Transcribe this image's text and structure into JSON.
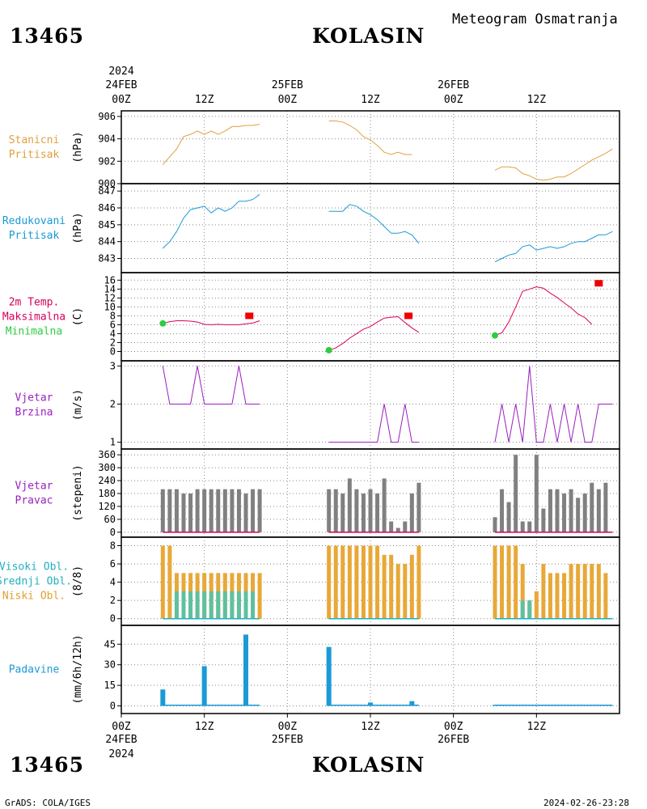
{
  "header": {
    "station_id": "13465",
    "station_name": "KOLASIN",
    "product_title": "Meteogram Osmatranja"
  },
  "footer": {
    "station_id": "13465",
    "station_name": "KOLASIN",
    "credit": "GrADS: COLA/IGES",
    "timestamp": "2024-02-26-23:28"
  },
  "chart_data": {
    "type": "line",
    "x_unit": "hours",
    "x_range": [
      0,
      72
    ],
    "x_ticks": [
      0,
      12,
      24,
      36,
      48,
      60
    ],
    "x_tick_labels": [
      "00Z",
      "12Z",
      "00Z",
      "12Z",
      "00Z",
      "12Z"
    ],
    "top_date_labels": [
      {
        "x": 0,
        "text": "24FEB",
        "year": "2024"
      },
      {
        "x": 24,
        "text": "25FEB"
      },
      {
        "x": 48,
        "text": "26FEB"
      }
    ],
    "bottom_date_labels": [
      {
        "x": 0,
        "text": "24FEB",
        "year": "2024"
      },
      {
        "x": 24,
        "text": "25FEB"
      },
      {
        "x": 48,
        "text": "26FEB"
      }
    ],
    "grid": true,
    "panels": [
      {
        "id": "pressure",
        "labels": [
          {
            "text": "Stanicni",
            "color": "#e0a040"
          },
          {
            "text": "Pritisak",
            "color": "#e0a040"
          }
        ],
        "ylabel": "(hPa)",
        "ylim": [
          900,
          906.5
        ],
        "yticks": [
          900,
          902,
          904,
          906
        ],
        "series": [
          {
            "kind": "line",
            "color": "#e0a040",
            "x": [
              6,
              7,
              8,
              9,
              10,
              11,
              12,
              13,
              14,
              15,
              16,
              17,
              18,
              19,
              20
            ],
            "y": [
              901.7,
              902.4,
              903.1,
              904.2,
              904.4,
              904.7,
              904.4,
              904.7,
              904.4,
              904.7,
              905.1,
              905.1,
              905.2,
              905.2,
              905.3
            ]
          },
          {
            "kind": "line",
            "color": "#e0a040",
            "x": [
              30,
              31,
              32,
              33,
              34,
              35,
              36,
              37,
              38,
              39,
              40,
              41,
              42,
              43,
              44
            ],
            "y": [
              905.6,
              905.6,
              905.5,
              905.2,
              904.8,
              904.2,
              903.9,
              903.4,
              902.8,
              902.6,
              902.8,
              902.6,
              902.6,
              null,
              null
            ]
          },
          {
            "kind": "line",
            "color": "#e0a040",
            "x": [
              54,
              55,
              56,
              57,
              58,
              59,
              60,
              61,
              62,
              63,
              64,
              65,
              66,
              67,
              68,
              69,
              70,
              71
            ],
            "y": [
              901.2,
              901.5,
              901.5,
              901.4,
              900.9,
              900.7,
              900.4,
              900.3,
              900.4,
              900.6,
              900.6,
              900.9,
              901.3,
              901.7,
              902.1,
              902.4,
              902.7,
              903.1
            ]
          }
        ]
      },
      {
        "id": "reduced_pressure",
        "labels": [
          {
            "text": "Redukovani",
            "color": "#1a9ad6"
          },
          {
            "text": "Pritisak",
            "color": "#1a9ad6"
          }
        ],
        "ylabel": "(hPa)",
        "ylim": [
          842.4,
          847.2
        ],
        "yticks": [
          843,
          844,
          845,
          846,
          847
        ],
        "series": [
          {
            "kind": "line",
            "color": "#1a9ad6",
            "x": [
              6,
              7,
              8,
              9,
              10,
              11,
              12,
              13,
              14,
              15,
              16,
              17,
              18,
              19,
              20
            ],
            "y": [
              843.6,
              844.0,
              844.6,
              845.4,
              845.9,
              846.0,
              846.1,
              845.7,
              846.0,
              845.8,
              846.0,
              846.4,
              846.4,
              846.5,
              846.8
            ]
          },
          {
            "kind": "line",
            "color": "#1a9ad6",
            "x": [
              30,
              31,
              32,
              33,
              34,
              35,
              36,
              37,
              38,
              39,
              40,
              41,
              42,
              43
            ],
            "y": [
              845.8,
              845.8,
              845.8,
              846.2,
              846.1,
              845.8,
              845.6,
              845.3,
              844.9,
              844.5,
              844.5,
              844.6,
              844.4,
              843.9
            ]
          },
          {
            "kind": "line",
            "color": "#1a9ad6",
            "x": [
              54,
              55,
              56,
              57,
              58,
              59,
              60,
              61,
              62,
              63,
              64,
              65,
              66,
              67,
              68,
              69,
              70,
              71
            ],
            "y": [
              842.8,
              843.0,
              843.2,
              843.3,
              843.7,
              843.8,
              843.5,
              843.6,
              843.7,
              843.6,
              843.7,
              843.9,
              844.0,
              844.0,
              844.2,
              844.4,
              844.4,
              844.6
            ]
          }
        ]
      },
      {
        "id": "temperature",
        "labels": [
          {
            "text": "2m Temp.",
            "color": "#d6005a"
          },
          {
            "text": "Maksimalna",
            "color": "#d6005a"
          },
          {
            "text": "Minimalna",
            "color": "#2ecc40"
          }
        ],
        "ylabel": "(C)",
        "ylim": [
          -1,
          16.6
        ],
        "yticks": [
          0,
          2,
          4,
          6,
          8,
          10,
          12,
          14,
          16
        ],
        "series": [
          {
            "kind": "line",
            "color": "#d6005a",
            "x": [
              6,
              7,
              8,
              9,
              10,
              11,
              12,
              13,
              14,
              15,
              16,
              17,
              18,
              19,
              20
            ],
            "y": [
              6.3,
              6.7,
              6.9,
              6.9,
              6.8,
              6.6,
              6.1,
              6.0,
              6.1,
              6.0,
              6.0,
              6.0,
              6.2,
              6.4,
              6.9
            ]
          },
          {
            "kind": "line",
            "color": "#d6005a",
            "x": [
              30,
              31,
              32,
              33,
              34,
              35,
              36,
              37,
              38,
              39,
              40,
              41,
              42,
              43
            ],
            "y": [
              0.3,
              0.8,
              1.8,
              3.0,
              4.0,
              5.0,
              5.6,
              6.6,
              7.5,
              7.7,
              7.8,
              6.5,
              5.3,
              4.3
            ]
          },
          {
            "kind": "line",
            "color": "#d6005a",
            "x": [
              54,
              55,
              56,
              57,
              58,
              59,
              60,
              61,
              62,
              63,
              64,
              65,
              66,
              67,
              68,
              69,
              70,
              71
            ],
            "y": [
              3.6,
              4.2,
              6.6,
              10.0,
              13.5,
              14.0,
              14.5,
              14.2,
              13.1,
              12.1,
              10.9,
              9.8,
              8.4,
              7.6,
              6.1,
              null,
              null,
              null
            ]
          },
          {
            "kind": "marker",
            "shape": "rect",
            "color": "#ee0000",
            "x": [
              18.5,
              41.5,
              69
            ],
            "y": [
              8,
              8,
              15.3
            ]
          },
          {
            "kind": "marker",
            "shape": "circle",
            "color": "#2ecc40",
            "x": [
              6,
              30,
              54
            ],
            "y": [
              6.3,
              0.3,
              3.6
            ]
          }
        ]
      },
      {
        "id": "wind_speed",
        "labels": [
          {
            "text": "Vjetar",
            "color": "#9b1fbf"
          },
          {
            "text": "Brzina",
            "color": "#9b1fbf"
          }
        ],
        "ylabel": "(m/s)",
        "ylim": [
          0.95,
          3.05
        ],
        "yticks": [
          1,
          2,
          3
        ],
        "series": [
          {
            "kind": "line",
            "color": "#9b1fbf",
            "x": [
              6,
              7,
              8,
              9,
              10,
              11,
              12,
              13,
              14,
              15,
              16,
              17,
              18,
              19,
              20
            ],
            "y": [
              3,
              2,
              2,
              2,
              2,
              3,
              2,
              2,
              2,
              2,
              2,
              3,
              2,
              2,
              2
            ]
          },
          {
            "kind": "line",
            "color": "#9b1fbf",
            "x": [
              30,
              31,
              32,
              33,
              34,
              35,
              36,
              37,
              38,
              39,
              40,
              41,
              42,
              43
            ],
            "y": [
              1,
              1,
              1,
              1,
              1,
              1,
              1,
              1,
              2,
              1,
              1,
              2,
              1,
              1
            ]
          },
          {
            "kind": "line",
            "color": "#9b1fbf",
            "x": [
              54,
              55,
              56,
              57,
              58,
              59,
              60,
              61,
              62,
              63,
              64,
              65,
              66,
              67,
              68,
              69,
              70,
              71
            ],
            "y": [
              1,
              2,
              1,
              2,
              1,
              3,
              1,
              1,
              2,
              1,
              2,
              1,
              2,
              1,
              1,
              2,
              2,
              2
            ]
          }
        ]
      },
      {
        "id": "wind_direction",
        "labels": [
          {
            "text": "Vjetar",
            "color": "#9b1fbf"
          },
          {
            "text": "Pravac",
            "color": "#9b1fbf"
          }
        ],
        "ylabel": "(stepeni)",
        "ylim": [
          -8,
          372
        ],
        "yticks": [
          0,
          60,
          120,
          180,
          240,
          300,
          360
        ],
        "series": [
          {
            "kind": "bar",
            "color": "#808080",
            "x": [
              6,
              7,
              8,
              9,
              10,
              11,
              12,
              13,
              14,
              15,
              16,
              17,
              18,
              19,
              20,
              30,
              31,
              32,
              33,
              34,
              35,
              36,
              37,
              38,
              39,
              40,
              41,
              42,
              43,
              54,
              55,
              56,
              57,
              58,
              59,
              60,
              61,
              62,
              63,
              64,
              65,
              66,
              67,
              68,
              69,
              70,
              71
            ],
            "y": [
              200,
              200,
              200,
              180,
              180,
              200,
              200,
              200,
              200,
              200,
              200,
              200,
              180,
              200,
              200,
              200,
              200,
              180,
              250,
              200,
              180,
              200,
              180,
              250,
              50,
              20,
              50,
              180,
              230,
              70,
              200,
              140,
              360,
              50,
              50,
              360,
              110,
              200,
              200,
              180,
              200,
              160,
              180,
              230,
              200,
              230,
              null
            ]
          },
          {
            "kind": "hline",
            "color": "#d6005a",
            "value": 0,
            "ranges": [
              [
                6,
                20
              ],
              [
                30,
                43
              ],
              [
                54,
                71
              ]
            ]
          }
        ]
      },
      {
        "id": "clouds",
        "labels": [
          {
            "text": "Visoki Obl.",
            "color": "#20b0c0"
          },
          {
            "text": "Srednji Obl.",
            "color": "#20b0c0"
          },
          {
            "text": "Niski Obl.",
            "color": "#e0a030"
          }
        ],
        "ylabel": "(8/8)",
        "ylim": [
          -0.2,
          8.4
        ],
        "yticks": [
          0,
          2,
          4,
          6,
          8
        ],
        "series": [
          {
            "kind": "bar",
            "color": "#e8a838",
            "name": "",
            "x": [
              6,
              7,
              8,
              9,
              10,
              11,
              12,
              13,
              14,
              15,
              16,
              17,
              18,
              19,
              20,
              30,
              31,
              32,
              33,
              34,
              35,
              36,
              37,
              38,
              39,
              40,
              41,
              42,
              43,
              54,
              55,
              56,
              57,
              58,
              59,
              60,
              61,
              62,
              63,
              64,
              65,
              66,
              67,
              68,
              69,
              70
            ],
            "y": [
              8,
              8,
              5,
              5,
              5,
              5,
              5,
              5,
              5,
              5,
              5,
              5,
              5,
              5,
              5,
              8,
              8,
              8,
              8,
              8,
              8,
              8,
              8,
              7,
              7,
              6,
              6,
              7,
              8,
              8,
              8,
              8,
              8,
              6,
              2,
              3,
              6,
              5,
              5,
              5,
              6,
              6,
              6,
              6,
              6,
              5
            ]
          },
          {
            "kind": "bar",
            "color": "#5fc0a0",
            "name": "",
            "x": [
              8,
              9,
              10,
              11,
              12,
              13,
              14,
              15,
              16,
              17,
              18,
              19,
              58,
              59
            ],
            "y": [
              3,
              3,
              3,
              3,
              3,
              3,
              3,
              3,
              3,
              3,
              3,
              3,
              2,
              2
            ]
          },
          {
            "kind": "hline",
            "color": "#20b0c0",
            "value": 0,
            "ranges": [
              [
                6,
                20
              ],
              [
                30,
                43
              ],
              [
                54,
                71
              ]
            ]
          }
        ]
      },
      {
        "id": "precipitation",
        "labels": [
          {
            "text": "Padavine",
            "color": "#1a9ad6"
          }
        ],
        "ylabel": "(mm/6h/12h)",
        "ylim": [
          -2,
          54
        ],
        "yticks": [
          0,
          15,
          30,
          45
        ],
        "series": [
          {
            "kind": "bar",
            "color": "#1a9ad6",
            "wide": true,
            "x": [
              6,
              12,
              18,
              30,
              36,
              42,
              54
            ],
            "y": [
              12,
              29,
              52,
              43,
              2.5,
              3.5,
              0.8
            ]
          },
          {
            "kind": "hline",
            "color": "#1a9ad6",
            "value": 0.5,
            "ranges": [
              [
                6,
                20
              ],
              [
                30,
                43
              ],
              [
                54,
                71
              ]
            ]
          }
        ]
      }
    ]
  }
}
